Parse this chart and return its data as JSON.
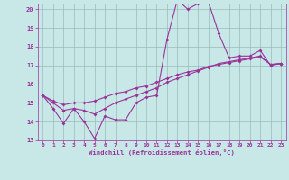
{
  "xlabel": "Windchill (Refroidissement éolien,°C)",
  "x": [
    0,
    1,
    2,
    3,
    4,
    5,
    6,
    7,
    8,
    9,
    10,
    11,
    12,
    13,
    14,
    15,
    16,
    17,
    18,
    19,
    20,
    21,
    22,
    23
  ],
  "line1": [
    15.4,
    14.7,
    13.9,
    14.7,
    14.0,
    13.1,
    14.3,
    14.1,
    14.1,
    15.0,
    15.3,
    15.4,
    18.4,
    20.5,
    20.0,
    20.3,
    20.4,
    18.7,
    17.4,
    17.5,
    17.5,
    17.8,
    17.0,
    17.1
  ],
  "line2": [
    15.4,
    15.0,
    14.6,
    14.7,
    14.6,
    14.4,
    14.7,
    15.0,
    15.2,
    15.4,
    15.6,
    15.8,
    16.1,
    16.3,
    16.5,
    16.7,
    16.9,
    17.1,
    17.2,
    17.3,
    17.4,
    17.5,
    17.05,
    17.1
  ],
  "line3": [
    15.4,
    15.1,
    14.9,
    15.0,
    15.0,
    15.1,
    15.3,
    15.5,
    15.6,
    15.8,
    15.9,
    16.1,
    16.3,
    16.5,
    16.65,
    16.75,
    16.95,
    17.05,
    17.15,
    17.25,
    17.35,
    17.45,
    17.05,
    17.1
  ],
  "ylim": [
    13,
    20
  ],
  "xlim": [
    -0.5,
    23.5
  ],
  "yticks": [
    13,
    14,
    15,
    16,
    17,
    18,
    19,
    20
  ],
  "xticks": [
    0,
    1,
    2,
    3,
    4,
    5,
    6,
    7,
    8,
    9,
    10,
    11,
    12,
    13,
    14,
    15,
    16,
    17,
    18,
    19,
    20,
    21,
    22,
    23
  ],
  "line_color": "#993399",
  "bg_color": "#c8e8e8",
  "grid_color": "#99bbbb",
  "tick_color": "#993399",
  "label_color": "#993399",
  "font_family": "monospace",
  "marker": "D",
  "markersize": 2.0,
  "linewidth": 0.8
}
